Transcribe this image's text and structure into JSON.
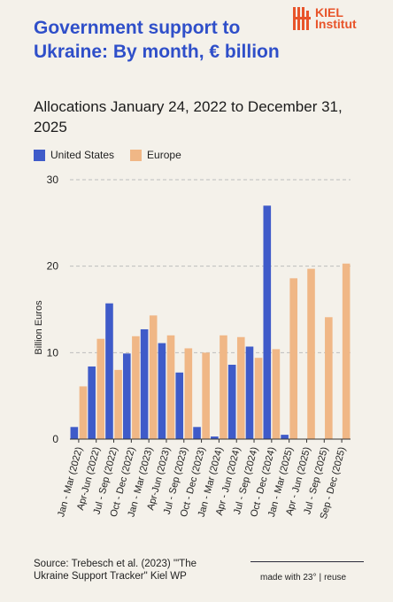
{
  "header": {
    "title": "Government support to Ukraine: By month, € billion",
    "subtitle": "Allocations January 24, 2022 to December 31, 2025"
  },
  "logo": {
    "line1": "KIEL",
    "line2": "Institut",
    "color": "#e8542a"
  },
  "legend": [
    {
      "label": "United States",
      "color": "#3f5bc9"
    },
    {
      "label": "Europe",
      "color": "#f0b786"
    }
  ],
  "chart_data": {
    "type": "bar",
    "ylabel": "Billion Euros",
    "ylim": [
      0,
      30
    ],
    "yticks": [
      0,
      10,
      20,
      30
    ],
    "grid": true,
    "legend_position": "top-left",
    "categories": [
      "Jan - Mar (2022)",
      "Apr-Jun (2022)",
      "Jul - Sep (2022)",
      "Oct - Dec (2022)",
      "Jan - Mar (2023)",
      "Apr-Jun (2023)",
      "Jul - Sep (2023)",
      "Oct - Dec (2023)",
      "Jan - Mar (2024)",
      "Apr - Jun (2024)",
      "Jul - Sep (2024)",
      "Oct - Dec (2024)",
      "Jan - Mar (2025)",
      "Apr - Jun (2025)",
      "Jul - Sep (2025)",
      "Sep - Dec (2025)"
    ],
    "series": [
      {
        "name": "United States",
        "color": "#3f5bc9",
        "values": [
          1.4,
          8.4,
          15.7,
          9.9,
          12.7,
          11.1,
          7.7,
          1.4,
          0.3,
          8.6,
          10.7,
          27.0,
          0.5,
          0,
          0,
          0
        ]
      },
      {
        "name": "Europe",
        "color": "#f0b786",
        "values": [
          6.1,
          11.6,
          8.0,
          11.9,
          14.3,
          12.0,
          10.5,
          10.0,
          12.0,
          11.8,
          9.4,
          10.4,
          18.6,
          19.7,
          14.1,
          20.3
        ]
      }
    ]
  },
  "footer": {
    "source": "Source: Trebesch et al. (2023) '\"The Ukraine Support Tracker\" Kiel WP",
    "made_with": "made with 23°",
    "separator": "|",
    "reuse": "reuse"
  }
}
